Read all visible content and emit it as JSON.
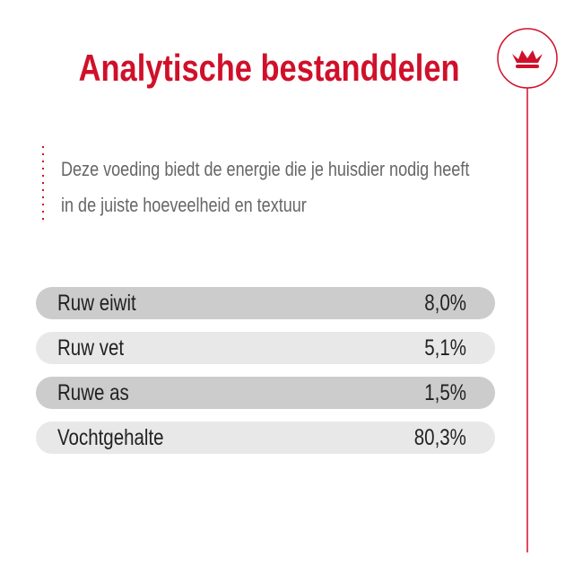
{
  "header": {
    "title": "Analytische bestanddelen",
    "subtitle_lines": [
      "Deze voeding biedt de energie die je huisdier nodig heeft",
      "in de juiste hoeveelheid en textuur"
    ]
  },
  "table": {
    "rows": [
      [
        "Ruw eiwit",
        "8,0%"
      ],
      [
        "Ruw vet",
        "5,1%"
      ],
      [
        "Ruwe as",
        "1,5%"
      ],
      [
        "Vochtgehalte",
        "80,3%"
      ]
    ]
  }
}
